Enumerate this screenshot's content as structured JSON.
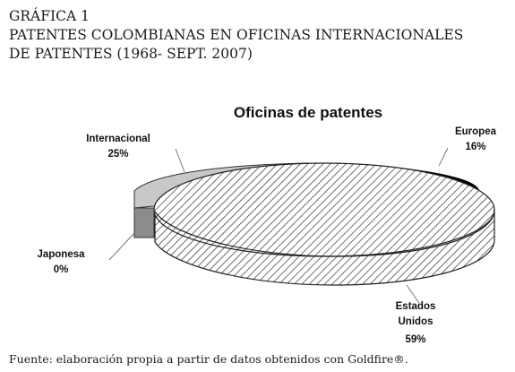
{
  "figure": {
    "label": "GRÁFICA 1",
    "title_line1": "PATENTES COLOMBIANAS EN OFICINAS INTERNACIONALES",
    "title_line2": "DE PATENTES (1968- SEPT. 2007)",
    "source": "Fuente: elaboración propia a partir de datos obtenidos con Goldfire®."
  },
  "chart_data": {
    "type": "pie",
    "style": "3d-exploded",
    "title": "Oficinas de patentes",
    "slices": [
      {
        "name": "Europea",
        "percent_label": "16%",
        "value": 16,
        "fill": "#000000"
      },
      {
        "name": "Estados Unidos",
        "name_line1": "Estados",
        "name_line2": "Unidos",
        "percent_label": "59%",
        "value": 59,
        "fill": "hatch"
      },
      {
        "name": "Japonesa",
        "percent_label": "0%",
        "value": 0,
        "fill": "#888888"
      },
      {
        "name": "Internacional",
        "percent_label": "25%",
        "value": 25,
        "fill": "#c8c8c8"
      }
    ],
    "legend": "none (labels beside slices)"
  }
}
